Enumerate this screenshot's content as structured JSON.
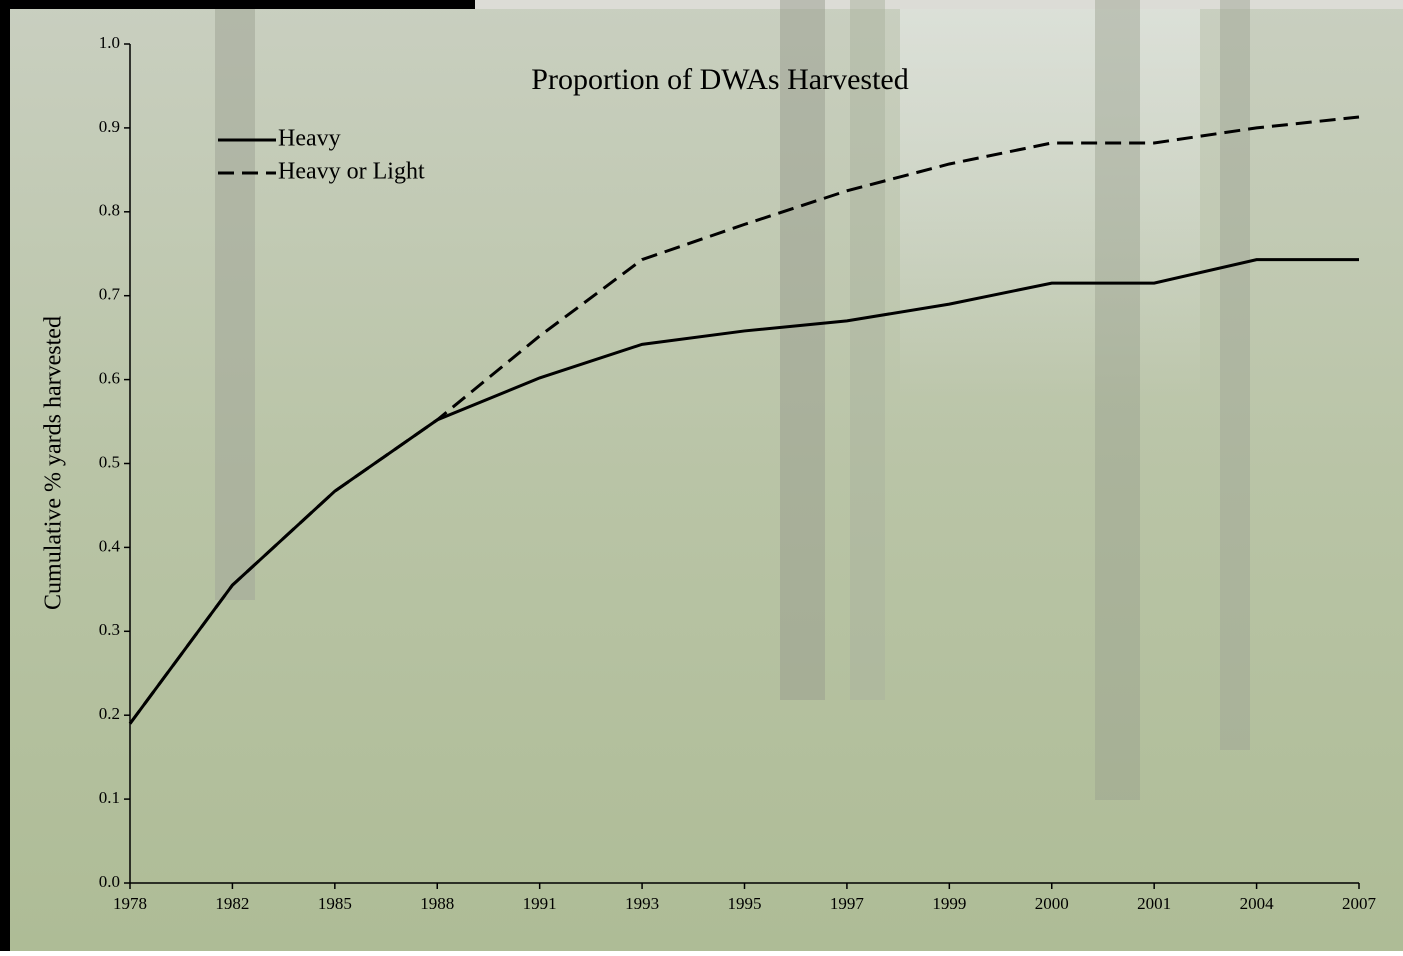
{
  "chart_data": {
    "type": "line",
    "title": "Proportion of DWAs Harvested",
    "y_label": "Cumulative % yards harvested",
    "categories": [
      "1978",
      "1982",
      "1985",
      "1988",
      "1991",
      "1993",
      "1995",
      "1997",
      "1999",
      "2000",
      "2001",
      "2004",
      "2007"
    ],
    "series": [
      {
        "name": "Heavy",
        "color": "#000000",
        "dash": false,
        "values": [
          0.19,
          0.355,
          0.467,
          0.552,
          0.602,
          0.642,
          0.658,
          0.67,
          0.69,
          0.715,
          0.715,
          0.743,
          0.743
        ]
      },
      {
        "name": "Heavy or Light",
        "color": "#000000",
        "dash": true,
        "values": [
          0.19,
          0.355,
          0.467,
          0.552,
          0.652,
          0.743,
          0.785,
          0.825,
          0.857,
          0.882,
          0.882,
          0.9,
          0.913
        ]
      }
    ],
    "ylim": [
      0,
      1
    ],
    "yticks": [
      {
        "value": 0,
        "label": "0.0"
      },
      0.1,
      0.2,
      0.3,
      0.4,
      0.5,
      0.6,
      0.7,
      0.8,
      0.9,
      {
        "value": 1,
        "label": "1.0"
      }
    ],
    "legend": "top-left"
  }
}
